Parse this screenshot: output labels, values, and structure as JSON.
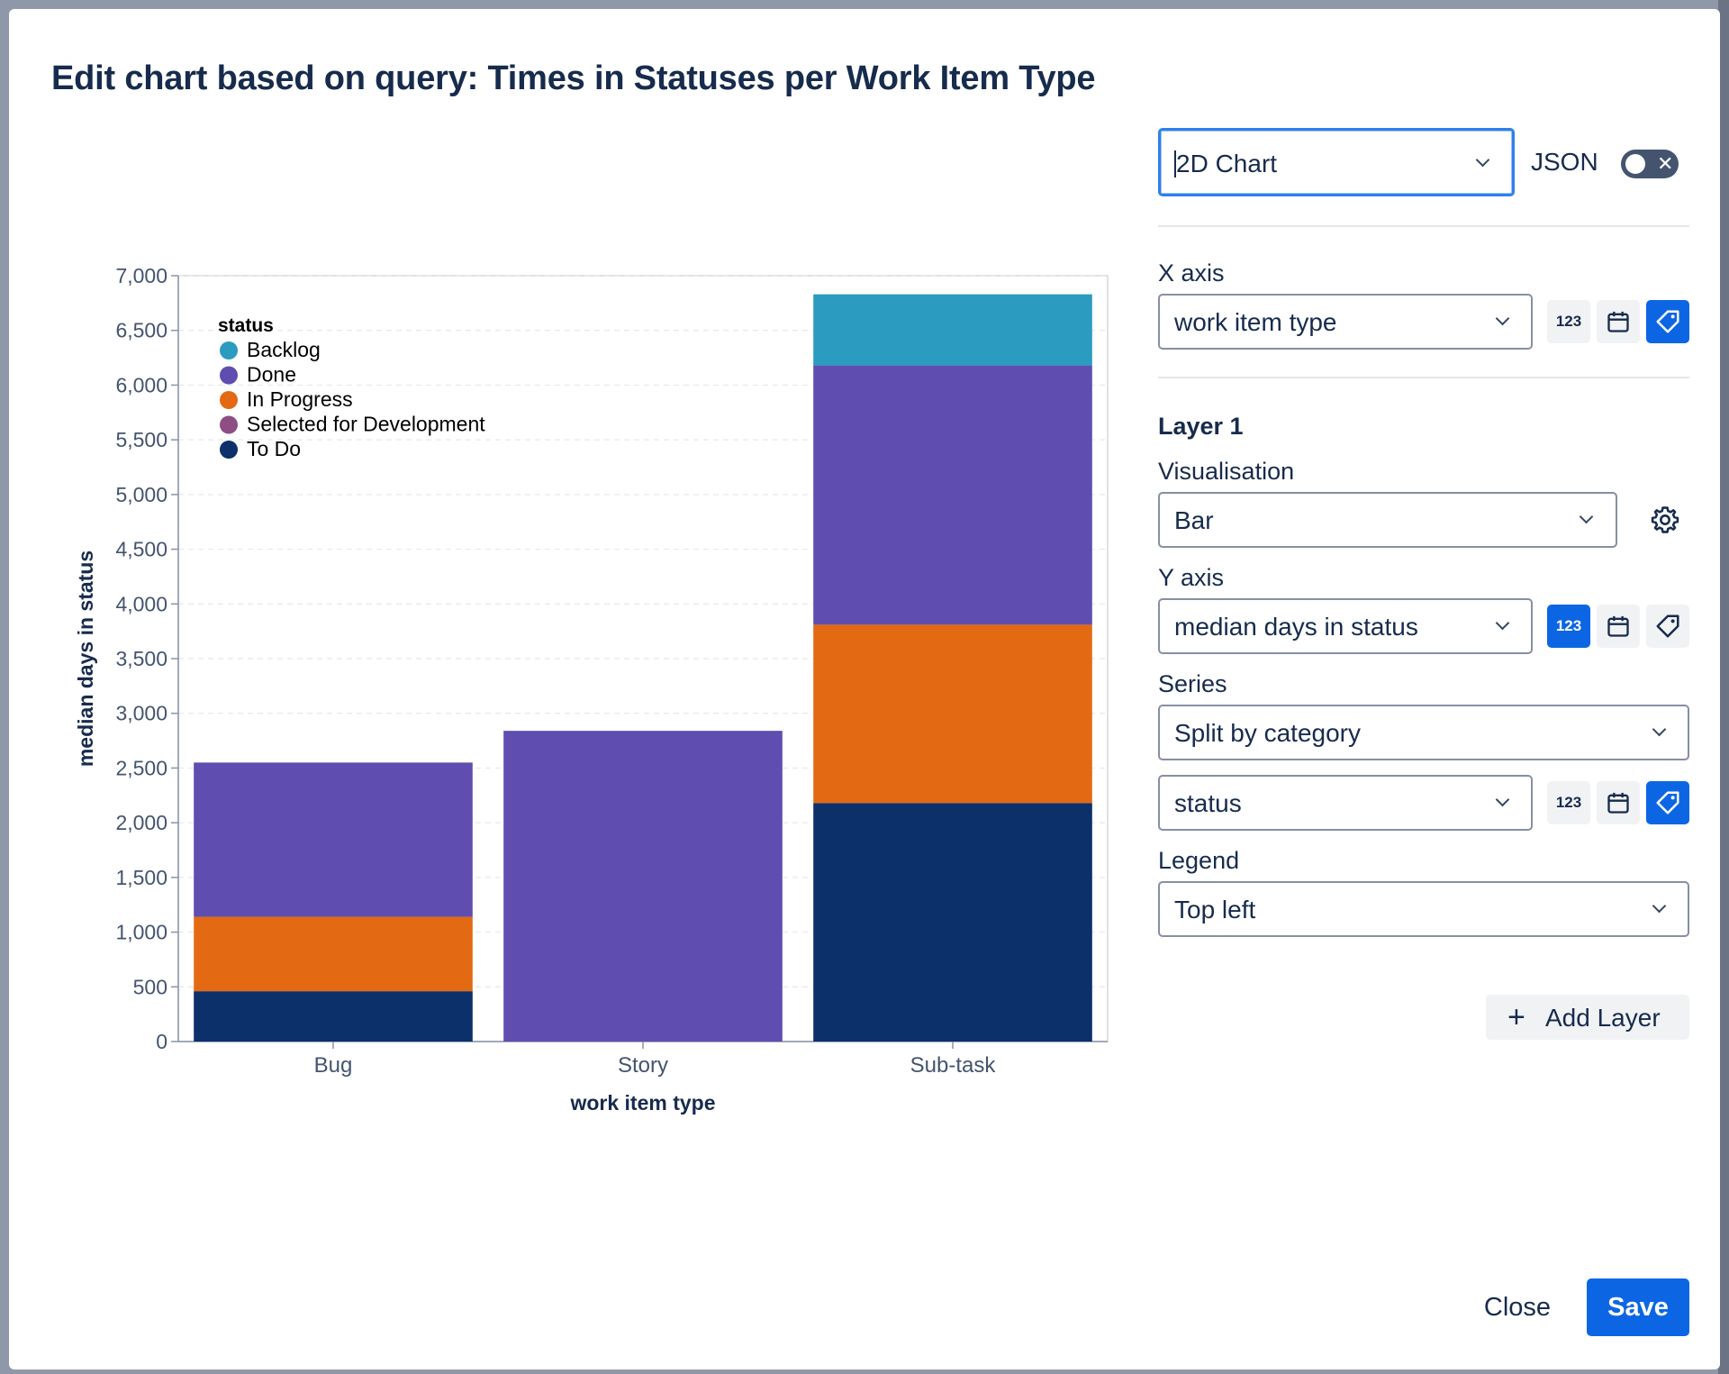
{
  "modal": {
    "title": "Edit chart based on query: Times in Statuses per Work Item Type"
  },
  "panel": {
    "chart_type": "2D Chart",
    "json_label": "JSON",
    "json_toggle_symbol": "✕",
    "x_axis": {
      "label": "X axis",
      "value": "work item type"
    },
    "layer_title": "Layer 1",
    "visualisation": {
      "label": "Visualisation",
      "value": "Bar"
    },
    "y_axis": {
      "label": "Y axis",
      "value": "median days in status"
    },
    "series": {
      "label": "Series",
      "value": "Split by category",
      "field": "status"
    },
    "legend": {
      "label": "Legend",
      "value": "Top left"
    },
    "type_buttons": {
      "number": "123"
    },
    "add_layer": "Add Layer",
    "add_layer_symbol": "+"
  },
  "footer": {
    "close": "Close",
    "save": "Save"
  },
  "chart_data": {
    "type": "bar",
    "stacked": true,
    "xlabel": "work item type",
    "ylabel": "median days in status",
    "ylim": [
      0,
      7000
    ],
    "yticks": [
      0,
      500,
      1000,
      1500,
      2000,
      2500,
      3000,
      3500,
      4000,
      4500,
      5000,
      5500,
      6000,
      6500,
      7000
    ],
    "ytick_labels": [
      "0",
      "500",
      "1,000",
      "1,500",
      "2,000",
      "2,500",
      "3,000",
      "3,500",
      "4,000",
      "4,500",
      "5,000",
      "5,500",
      "6,000",
      "6,500",
      "7,000"
    ],
    "categories": [
      "Bug",
      "Story",
      "Sub-task"
    ],
    "legend_title": "status",
    "legend_position": "top-left",
    "series": [
      {
        "name": "Backlog",
        "color": "#2b9bbf",
        "values": [
          0,
          0,
          650
        ]
      },
      {
        "name": "Done",
        "color": "#5f4eb0",
        "values": [
          1410,
          2840,
          2370
        ]
      },
      {
        "name": "In Progress",
        "color": "#e36a13",
        "values": [
          680,
          0,
          1630
        ]
      },
      {
        "name": "Selected for Development",
        "color": "#8e4e84",
        "values": [
          0,
          0,
          0
        ]
      },
      {
        "name": "To Do",
        "color": "#0b306a",
        "values": [
          460,
          0,
          2180
        ]
      }
    ],
    "stack_order_bottom_to_top": [
      "To Do",
      "In Progress",
      "Done",
      "Backlog"
    ]
  }
}
